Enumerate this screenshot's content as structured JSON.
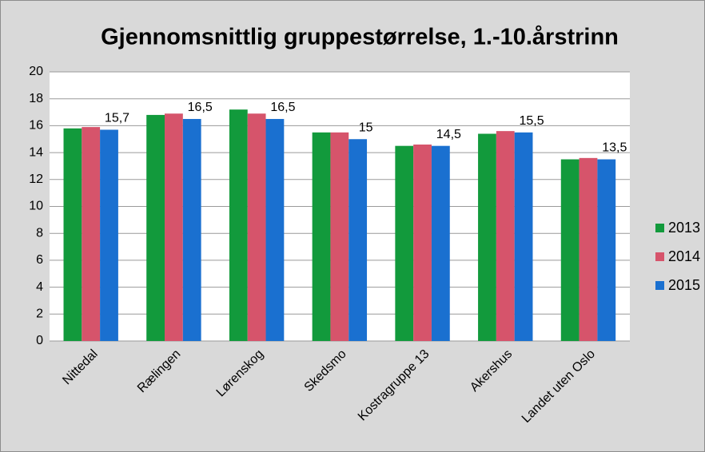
{
  "chart_data": {
    "type": "bar",
    "title": "Gjennomsnittlig gruppestørrelse, 1.-10.årstrinn",
    "categories": [
      "Nittedal",
      "Rælingen",
      "Lørenskog",
      "Skedsmo",
      "Kostragruppe 13",
      "Akershus",
      "Landet uten Oslo"
    ],
    "series": [
      {
        "name": "2013",
        "color": "#129a3c",
        "values": [
          15.8,
          16.8,
          17.2,
          15.5,
          14.5,
          15.4,
          13.5
        ]
      },
      {
        "name": "2014",
        "color": "#d6546b",
        "values": [
          15.9,
          16.9,
          16.9,
          15.5,
          14.6,
          15.6,
          13.6
        ]
      },
      {
        "name": "2015",
        "color": "#1a70d0",
        "values": [
          15.7,
          16.5,
          16.5,
          15,
          14.5,
          15.5,
          13.5
        ],
        "value_labels": [
          "15,7",
          "16,5",
          "16,5",
          "15",
          "14,5",
          "15,5",
          "13,5"
        ]
      }
    ],
    "ylim": [
      0,
      20
    ],
    "yticks": [
      0,
      2,
      4,
      6,
      8,
      10,
      12,
      14,
      16,
      18,
      20
    ],
    "grid": true,
    "legend": "right"
  }
}
